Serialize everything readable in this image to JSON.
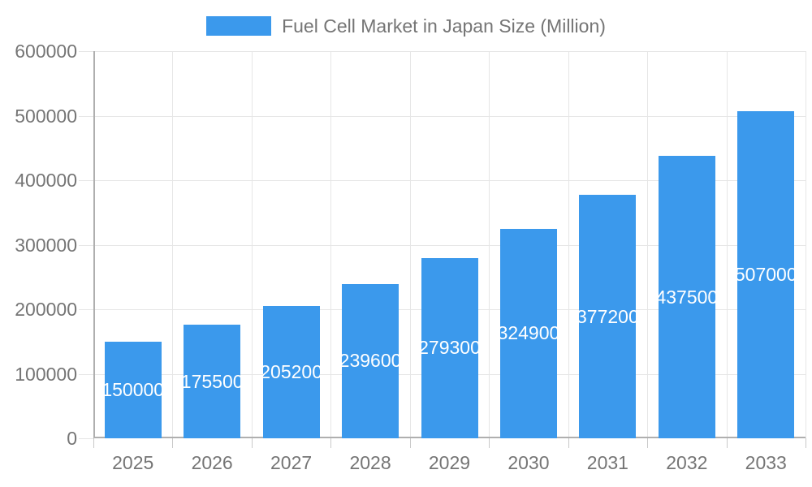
{
  "chart_data": {
    "type": "bar",
    "title": "Fuel Cell Market in Japan Size (Million)",
    "categories": [
      "2025",
      "2026",
      "2027",
      "2028",
      "2029",
      "2030",
      "2031",
      "2032",
      "2033"
    ],
    "values": [
      150000,
      175500,
      205200,
      239600,
      279300,
      324900,
      377200,
      437500,
      507000
    ],
    "xlabel": "",
    "ylabel": "",
    "ylim": [
      0,
      600000
    ],
    "yticks": [
      0,
      100000,
      200000,
      300000,
      400000,
      500000,
      600000
    ],
    "legend_position": "top",
    "grid": true,
    "bar_value_labels": "inside-center",
    "colors": {
      "bar": "#3B99EC",
      "bar_label_text": "#FFFFFF",
      "axis_text": "#757575",
      "gridline": "#E6E6E6",
      "axis_line": "#AFAFAF",
      "background": "#FFFFFF"
    }
  }
}
